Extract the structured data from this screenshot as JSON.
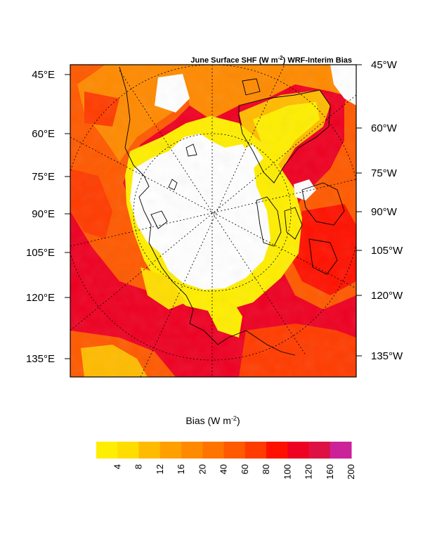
{
  "title": {
    "main": "June Surface SHF (W m",
    "sup": "-2",
    "rest": ") WRF-Interim Bias"
  },
  "left_axis_labels": [
    "45°E",
    "60°E",
    "75°E",
    "90°E",
    "105°E",
    "120°E",
    "135°E"
  ],
  "right_axis_labels": [
    "45°W",
    "60°W",
    "75°W",
    "90°W",
    "105°W",
    "120°W",
    "135°W"
  ],
  "colorbar": {
    "title_main": "Bias (W m",
    "title_sup": "-2",
    "title_rest": ")",
    "levels": [
      "4",
      "8",
      "12",
      "16",
      "20",
      "40",
      "60",
      "80",
      "100",
      "120",
      "160",
      "200"
    ],
    "colors": [
      "#ffee00",
      "#ffdd00",
      "#ffbb00",
      "#ffa000",
      "#ff8a00",
      "#ff7400",
      "#ff5a00",
      "#ff3c00",
      "#ff1100",
      "#ee0022",
      "#dd1144",
      "#cc2299"
    ],
    "below_color": "#ffffff"
  },
  "colors": {
    "ocean_ice": "#ffffff",
    "coast": "#000000",
    "graticule": "#000000"
  }
}
